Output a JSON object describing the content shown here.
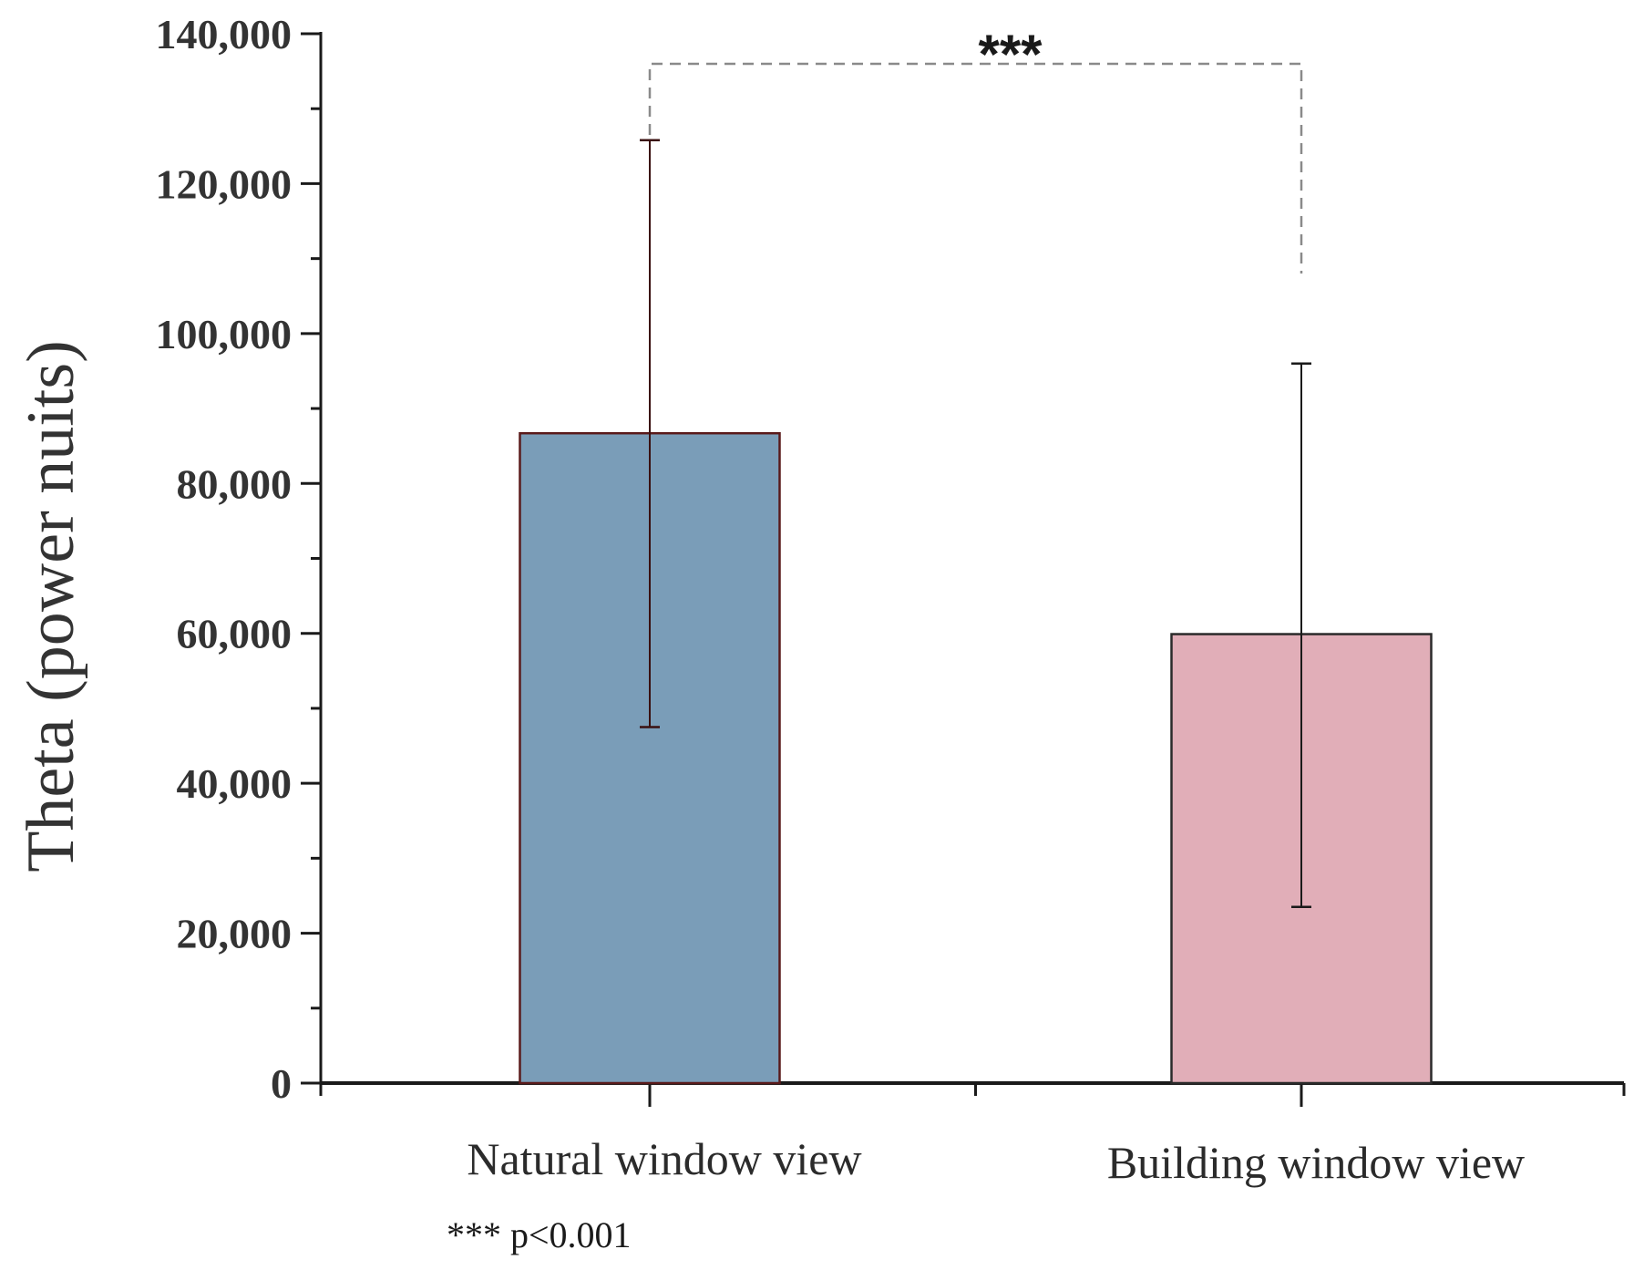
{
  "chart_data": {
    "type": "bar",
    "title": "",
    "xlabel": "",
    "ylabel": "Theta (power nuits)",
    "ylim": [
      0,
      140000
    ],
    "yticks": [
      0,
      20000,
      40000,
      60000,
      80000,
      100000,
      120000,
      140000
    ],
    "ytick_labels": [
      "0",
      "20,000",
      "40,000",
      "60,000",
      "80,000",
      "100,000",
      "120,000",
      "140,000"
    ],
    "categories": [
      "Natural window view",
      "Building window view"
    ],
    "values": [
      86700,
      59900
    ],
    "error_upper": [
      125800,
      96000
    ],
    "error_lower": [
      47500,
      23500
    ],
    "colors": [
      "#7a9db8",
      "#e1aeb8"
    ],
    "grid": false,
    "legend": "none",
    "significance": {
      "label": "***",
      "between": [
        0,
        1
      ],
      "footnote": "*** p<0.001"
    }
  }
}
